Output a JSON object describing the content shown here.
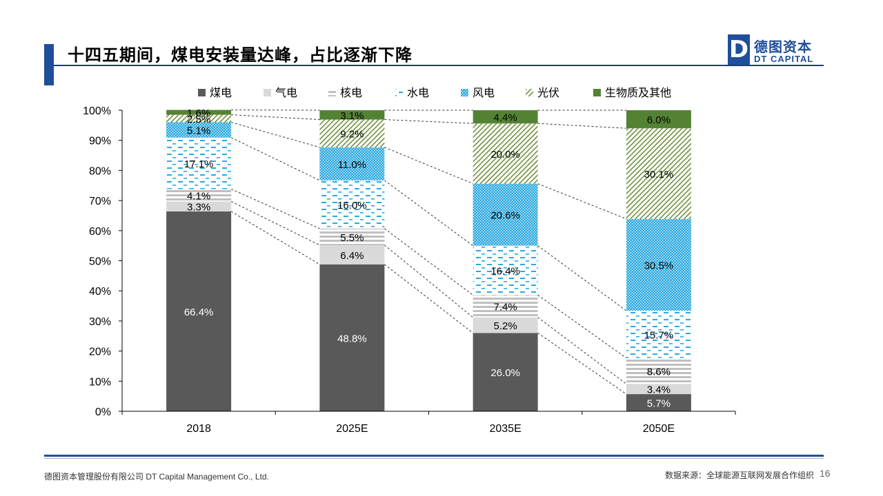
{
  "slide": {
    "title": "十四五期间，煤电安装量达峰，占比逐渐下降",
    "logo_cn": "德图资本",
    "logo_en": "DT CAPITAL",
    "logo_mark": "D",
    "footer_left": "德图资本管理股份有限公司  DT Capital Management  Co., Ltd.",
    "footer_right": "数据来源：全球能源互联网发展合作组织",
    "page_number": "16",
    "accent_color": "#1f4e9a"
  },
  "chart_data": {
    "type": "bar",
    "stacked": true,
    "percent": true,
    "categories": [
      "2018",
      "2025E",
      "2035E",
      "2050E"
    ],
    "ylim": [
      0,
      100
    ],
    "yticks": [
      "0%",
      "10%",
      "20%",
      "30%",
      "40%",
      "50%",
      "60%",
      "70%",
      "80%",
      "90%",
      "100%"
    ],
    "legend_position": "top",
    "series": [
      {
        "name": "煤电",
        "values": [
          66.4,
          48.8,
          26.0,
          5.7
        ],
        "labels": [
          "66.4%",
          "48.8%",
          "26.0%",
          "5.7%"
        ],
        "color": "#595959"
      },
      {
        "name": "气电",
        "values": [
          3.3,
          6.4,
          5.2,
          3.4
        ],
        "labels": [
          "3.3%",
          "6.4%",
          "5.2%",
          "3.4%"
        ],
        "color": "#d9d9d9"
      },
      {
        "name": "核电",
        "values": [
          4.1,
          5.5,
          7.4,
          8.6
        ],
        "labels": [
          "4.1%",
          "5.5%",
          "7.4%",
          "8.6%"
        ],
        "color": "#bfbfbf"
      },
      {
        "name": "水电",
        "values": [
          17.1,
          16.0,
          16.4,
          15.7
        ],
        "labels": [
          "17.1%",
          "16.0%",
          "16.4%",
          "15.7%"
        ],
        "color": "#2aa8e0"
      },
      {
        "name": "风电",
        "values": [
          5.1,
          11.0,
          20.6,
          30.5
        ],
        "labels": [
          "5.1%",
          "11.0%",
          "20.6%",
          "30.5%"
        ],
        "color": "#2aa8e0"
      },
      {
        "name": "光伏",
        "values": [
          2.5,
          9.2,
          20.0,
          30.1
        ],
        "labels": [
          "2.5%",
          "9.2%",
          "20.0%",
          "30.1%"
        ],
        "color": "#6f8f3c"
      },
      {
        "name": "生物质及其他",
        "values": [
          1.6,
          3.1,
          4.4,
          6.0
        ],
        "labels": [
          "1.6%",
          "3.1%",
          "4.4%",
          "6.0%"
        ],
        "color": "#548235"
      }
    ]
  }
}
